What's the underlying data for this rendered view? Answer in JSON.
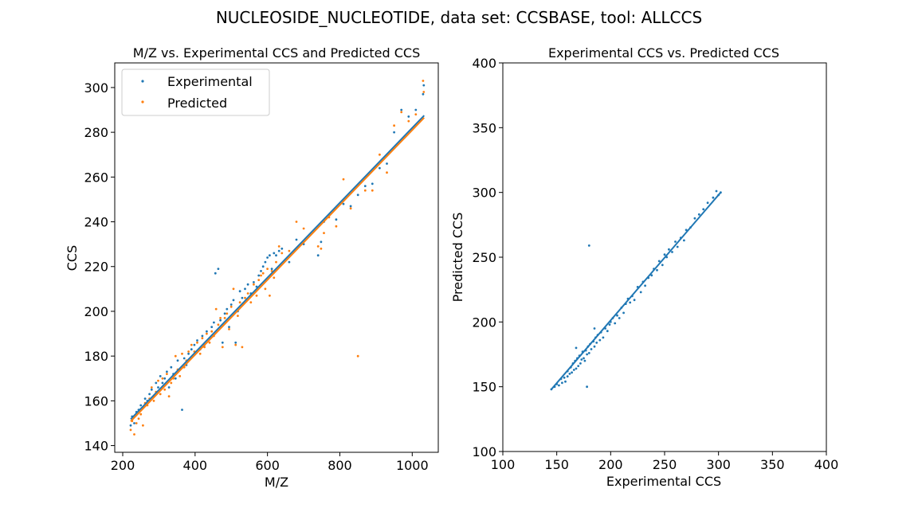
{
  "figure_title": "NUCLEOSIDE_NUCLEOTIDE, data set: CCSBASE, tool: ALLCCS",
  "colors": {
    "experimental": "#1f77b4",
    "predicted": "#ff7f0e"
  },
  "chart_data": [
    {
      "type": "scatter",
      "title": "M/Z vs. Experimental CCS and Predicted CCS",
      "xlabel": "M/Z",
      "ylabel": "CCS",
      "xlim": [
        178,
        1072
      ],
      "ylim": [
        137,
        311
      ],
      "xticks": [
        200,
        400,
        600,
        800,
        1000
      ],
      "yticks": [
        140,
        160,
        180,
        200,
        220,
        240,
        260,
        280,
        300
      ],
      "grid": false,
      "legend": {
        "placement": "upper-left",
        "entries": [
          "Experimental",
          "Predicted"
        ]
      },
      "series": [
        {
          "name": "Experimental",
          "color": "#1f77b4",
          "trend": {
            "x": [
              222,
              1033
            ],
            "y": [
              151.8,
              287.5
            ]
          },
          "points": [
            [
              222,
              149
            ],
            [
              226,
              153
            ],
            [
              232,
              150
            ],
            [
              238,
              155
            ],
            [
              244,
              156
            ],
            [
              250,
              158
            ],
            [
              256,
              157
            ],
            [
              262,
              161
            ],
            [
              268,
              160
            ],
            [
              274,
              163
            ],
            [
              280,
              165
            ],
            [
              286,
              162
            ],
            [
              292,
              168
            ],
            [
              298,
              166
            ],
            [
              304,
              171
            ],
            [
              310,
              168
            ],
            [
              316,
              170
            ],
            [
              322,
              173
            ],
            [
              328,
              166
            ],
            [
              334,
              175
            ],
            [
              340,
              172
            ],
            [
              346,
              170
            ],
            [
              352,
              178
            ],
            [
              358,
              174
            ],
            [
              364,
              156
            ],
            [
              370,
              179
            ],
            [
              376,
              176
            ],
            [
              382,
              181
            ],
            [
              390,
              183
            ],
            [
              398,
              185
            ],
            [
              406,
              187
            ],
            [
              414,
              183
            ],
            [
              420,
              189
            ],
            [
              426,
              185
            ],
            [
              432,
              191
            ],
            [
              440,
              188
            ],
            [
              446,
              193
            ],
            [
              452,
              195
            ],
            [
              456,
              217
            ],
            [
              464,
              219
            ],
            [
              470,
              196
            ],
            [
              476,
              186
            ],
            [
              482,
              199
            ],
            [
              488,
              201
            ],
            [
              494,
              193
            ],
            [
              500,
              203
            ],
            [
              506,
              205
            ],
            [
              512,
              186
            ],
            [
              518,
              200
            ],
            [
              524,
              209
            ],
            [
              530,
              206
            ],
            [
              538,
              210
            ],
            [
              546,
              212
            ],
            [
              554,
              208
            ],
            [
              562,
              213
            ],
            [
              570,
              211
            ],
            [
              576,
              216
            ],
            [
              582,
              218
            ],
            [
              588,
              220
            ],
            [
              594,
              222
            ],
            [
              600,
              224
            ],
            [
              606,
              225
            ],
            [
              612,
              219
            ],
            [
              618,
              226
            ],
            [
              624,
              225
            ],
            [
              632,
              227
            ],
            [
              640,
              228
            ],
            [
              660,
              222
            ],
            [
              680,
              232
            ],
            [
              700,
              230
            ],
            [
              740,
              225
            ],
            [
              748,
              231
            ],
            [
              756,
              240
            ],
            [
              770,
              243
            ],
            [
              790,
              241
            ],
            [
              810,
              248
            ],
            [
              830,
              247
            ],
            [
              850,
              252
            ],
            [
              870,
              256
            ],
            [
              890,
              257
            ],
            [
              910,
              264
            ],
            [
              930,
              266
            ],
            [
              950,
              280
            ],
            [
              970,
              290
            ],
            [
              990,
              287
            ],
            [
              1010,
              290
            ],
            [
              1030,
              297
            ],
            [
              1032,
              301
            ]
          ]
        },
        {
          "name": "Predicted",
          "color": "#ff7f0e",
          "trend": {
            "x": [
              222,
              1033
            ],
            "y": [
              150.8,
              286.5
            ]
          },
          "points": [
            [
              222,
              147
            ],
            [
              226,
              151
            ],
            [
              232,
              145
            ],
            [
              238,
              150
            ],
            [
              244,
              152
            ],
            [
              250,
              154
            ],
            [
              256,
              149
            ],
            [
              262,
              159
            ],
            [
              268,
              158
            ],
            [
              274,
              161
            ],
            [
              280,
              166
            ],
            [
              286,
              160
            ],
            [
              292,
              164
            ],
            [
              298,
              169
            ],
            [
              304,
              163
            ],
            [
              310,
              170
            ],
            [
              316,
              165
            ],
            [
              322,
              172
            ],
            [
              328,
              162
            ],
            [
              334,
              168
            ],
            [
              340,
              170
            ],
            [
              346,
              180
            ],
            [
              352,
              174
            ],
            [
              358,
              171
            ],
            [
              364,
              181
            ],
            [
              370,
              175
            ],
            [
              376,
              178
            ],
            [
              382,
              182
            ],
            [
              390,
              185
            ],
            [
              398,
              182
            ],
            [
              406,
              186
            ],
            [
              414,
              181
            ],
            [
              420,
              188
            ],
            [
              426,
              184
            ],
            [
              432,
              190
            ],
            [
              440,
              186
            ],
            [
              446,
              191
            ],
            [
              452,
              189
            ],
            [
              458,
              201
            ],
            [
              464,
              194
            ],
            [
              470,
              197
            ],
            [
              476,
              184
            ],
            [
              482,
              197
            ],
            [
              488,
              199
            ],
            [
              494,
              192
            ],
            [
              500,
              202
            ],
            [
              506,
              210
            ],
            [
              512,
              185
            ],
            [
              518,
              198
            ],
            [
              524,
              204
            ],
            [
              530,
              184
            ],
            [
              538,
              206
            ],
            [
              546,
              208
            ],
            [
              554,
              204
            ],
            [
              562,
              212
            ],
            [
              570,
              207
            ],
            [
              576,
              214
            ],
            [
              582,
              216
            ],
            [
              588,
              217
            ],
            [
              594,
              210
            ],
            [
              600,
              219
            ],
            [
              606,
              207
            ],
            [
              612,
              218
            ],
            [
              618,
              215
            ],
            [
              624,
              222
            ],
            [
              632,
              229
            ],
            [
              640,
              226
            ],
            [
              660,
              227
            ],
            [
              680,
              240
            ],
            [
              700,
              237
            ],
            [
              740,
              229
            ],
            [
              748,
              228
            ],
            [
              756,
              235
            ],
            [
              770,
              242
            ],
            [
              790,
              238
            ],
            [
              810,
              259
            ],
            [
              830,
              246
            ],
            [
              850,
              180
            ],
            [
              870,
              254
            ],
            [
              890,
              254
            ],
            [
              910,
              270
            ],
            [
              930,
              262
            ],
            [
              950,
              283
            ],
            [
              970,
              289
            ],
            [
              990,
              285
            ],
            [
              1010,
              288
            ],
            [
              1030,
              303
            ],
            [
              1032,
              298
            ]
          ]
        }
      ]
    },
    {
      "type": "scatter",
      "title": "Experimental CCS vs. Predicted CCS",
      "xlabel": "Experimental CCS",
      "ylabel": "Predicted CCS",
      "xlim": [
        100,
        400
      ],
      "ylim": [
        100,
        400
      ],
      "xticks": [
        100,
        150,
        200,
        250,
        300,
        350,
        400
      ],
      "yticks": [
        100,
        150,
        200,
        250,
        300,
        350,
        400
      ],
      "grid": false,
      "series": [
        {
          "color": "#1f77b4",
          "trend": {
            "x": [
              145,
              302
            ],
            "y": [
              148,
              300
            ]
          },
          "points": [
            [
              145,
              148
            ],
            [
              148,
              150
            ],
            [
              150,
              152
            ],
            [
              152,
              151
            ],
            [
              154,
              156
            ],
            [
              155,
              153
            ],
            [
              157,
              157
            ],
            [
              158,
              154
            ],
            [
              160,
              162
            ],
            [
              160,
              158
            ],
            [
              162,
              160
            ],
            [
              163,
              165
            ],
            [
              164,
              161
            ],
            [
              165,
              168
            ],
            [
              166,
              163
            ],
            [
              167,
              170
            ],
            [
              168,
              164
            ],
            [
              169,
              172
            ],
            [
              170,
              166
            ],
            [
              171,
              174
            ],
            [
              172,
              168
            ],
            [
              173,
              171
            ],
            [
              174,
              177
            ],
            [
              175,
              172
            ],
            [
              176,
              170
            ],
            [
              177,
              178
            ],
            [
              178,
              175
            ],
            [
              179,
              181
            ],
            [
              180,
              176
            ],
            [
              181,
              183
            ],
            [
              182,
              179
            ],
            [
              184,
              185
            ],
            [
              185,
              181
            ],
            [
              186,
              188
            ],
            [
              187,
              184
            ],
            [
              188,
              190
            ],
            [
              190,
              186
            ],
            [
              191,
              192
            ],
            [
              193,
              188
            ],
            [
              195,
              195
            ],
            [
              197,
              193
            ],
            [
              199,
              198
            ],
            [
              200,
              200
            ],
            [
              202,
              203
            ],
            [
              204,
              199
            ],
            [
              206,
              205
            ],
            [
              208,
              203
            ],
            [
              210,
              211
            ],
            [
              212,
              207
            ],
            [
              214,
              214
            ],
            [
              216,
              218
            ],
            [
              218,
              215
            ],
            [
              220,
              220
            ],
            [
              222,
              217
            ],
            [
              225,
              227
            ],
            [
              228,
              223
            ],
            [
              230,
              231
            ],
            [
              232,
              228
            ],
            [
              235,
              234
            ],
            [
              238,
              236
            ],
            [
              240,
              241
            ],
            [
              243,
              240
            ],
            [
              245,
              247
            ],
            [
              248,
              244
            ],
            [
              250,
              252
            ],
            [
              252,
              250
            ],
            [
              254,
              256
            ],
            [
              257,
              254
            ],
            [
              260,
              262
            ],
            [
              262,
              258
            ],
            [
              265,
              265
            ],
            [
              268,
              263
            ],
            [
              270,
              271
            ],
            [
              274,
              273
            ],
            [
              278,
              280
            ],
            [
              282,
              283
            ],
            [
              286,
              287
            ],
            [
              290,
              292
            ],
            [
              295,
              296
            ],
            [
              298,
              301
            ],
            [
              300,
              298
            ],
            [
              302,
              300
            ],
            [
              180,
              259
            ],
            [
              178,
              150
            ],
            [
              168,
              180
            ],
            [
              185,
              195
            ]
          ]
        }
      ]
    }
  ]
}
